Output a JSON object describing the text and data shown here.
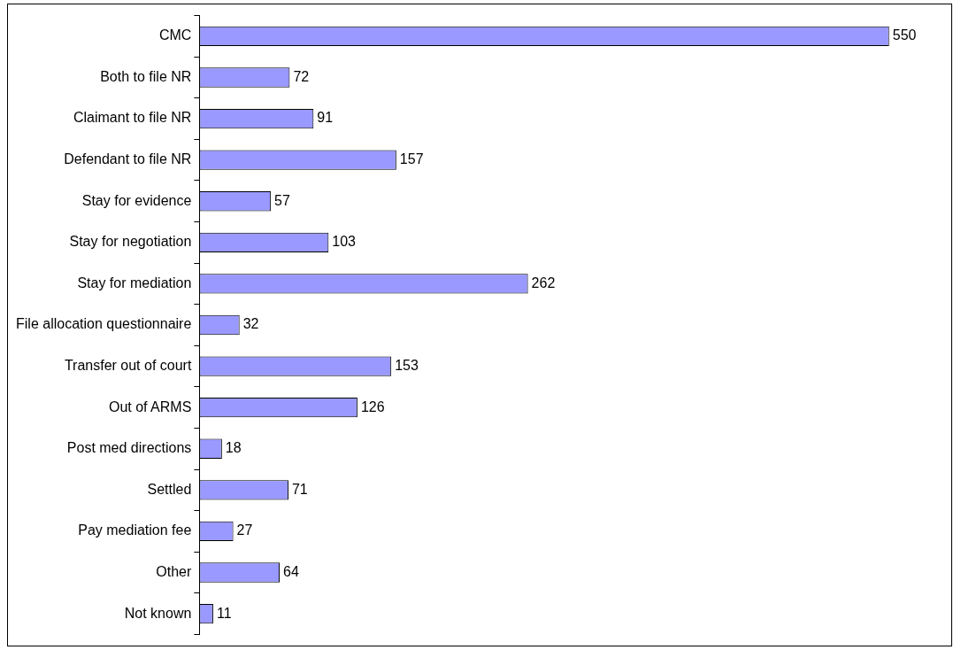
{
  "chart_data": {
    "type": "bar",
    "orientation": "horizontal",
    "categories": [
      "CMC",
      "Both to file NR",
      "Claimant to file NR",
      "Defendant to file NR",
      "Stay for evidence",
      "Stay for negotiation",
      "Stay for mediation",
      "File allocation questionnaire",
      "Transfer out of court",
      "Out of ARMS",
      "Post med directions",
      "Settled",
      "Pay mediation fee",
      "Other",
      "Not known"
    ],
    "values": [
      550,
      72,
      91,
      157,
      57,
      103,
      262,
      32,
      153,
      126,
      18,
      71,
      27,
      64,
      11
    ],
    "color": "#9999ff",
    "data_labels": true
  }
}
